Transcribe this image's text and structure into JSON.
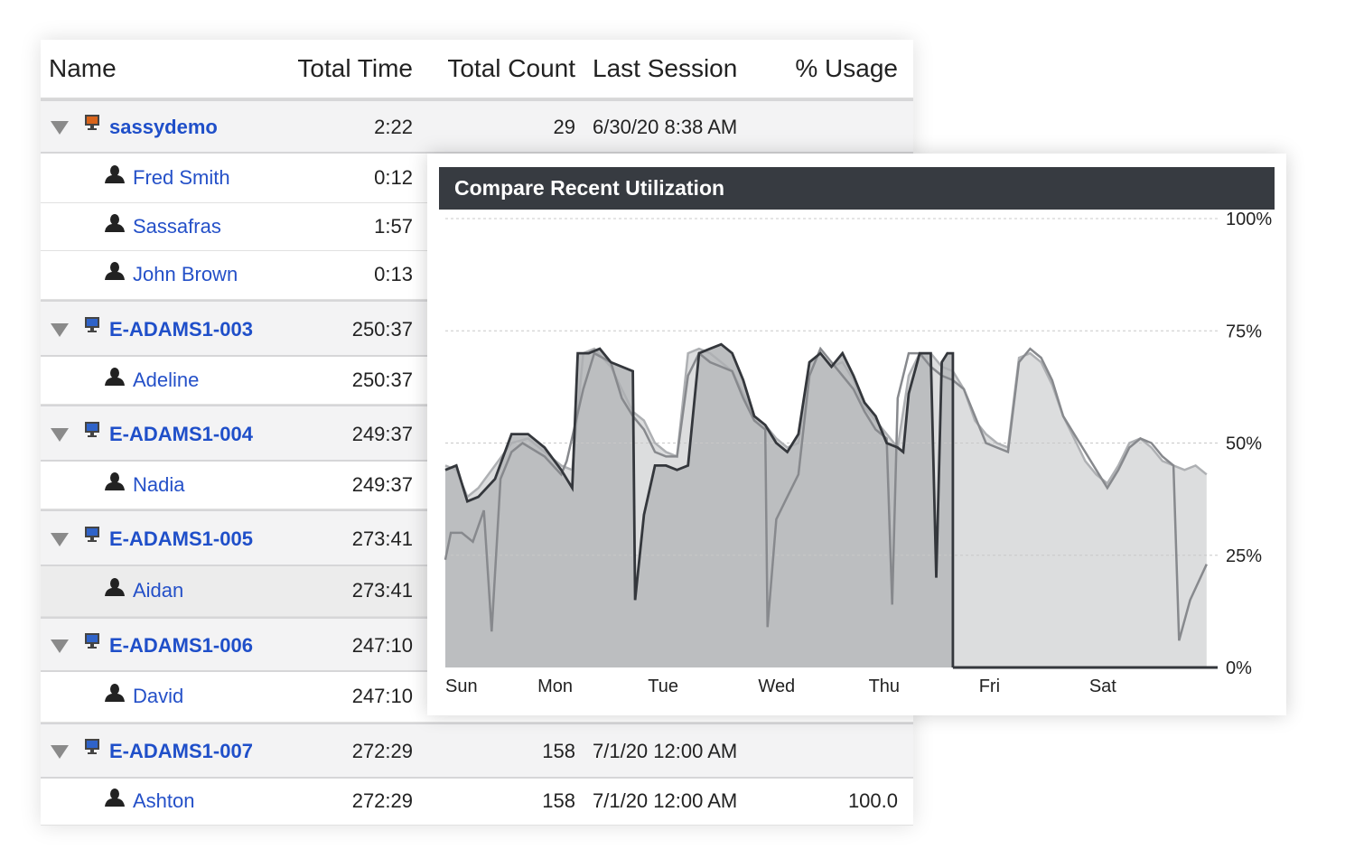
{
  "table": {
    "columns": {
      "name": "Name",
      "total_time": "Total Time",
      "total_count": "Total Count",
      "last_session": "Last Session",
      "usage": "% Usage"
    },
    "rows": [
      {
        "type": "computer",
        "icon": "computer-orange-icon",
        "name": "sassydemo",
        "total_time": "2:22",
        "total_count": "29",
        "last_session": "6/30/20 8:38 AM",
        "usage": ""
      },
      {
        "type": "user",
        "icon": "user-icon",
        "name": "Fred Smith",
        "total_time": "0:12",
        "total_count": "",
        "last_session": "",
        "usage": ""
      },
      {
        "type": "user",
        "icon": "user-icon",
        "name": "Sassafras",
        "total_time": "1:57",
        "total_count": "",
        "last_session": "",
        "usage": ""
      },
      {
        "type": "user",
        "icon": "user-icon",
        "name": "John Brown",
        "total_time": "0:13",
        "total_count": "",
        "last_session": "",
        "usage": ""
      },
      {
        "type": "computer",
        "icon": "computer-blue-icon",
        "name": "E-ADAMS1-003",
        "total_time": "250:37",
        "total_count": "",
        "last_session": "",
        "usage": ""
      },
      {
        "type": "user",
        "icon": "user-icon",
        "name": "Adeline",
        "total_time": "250:37",
        "total_count": "",
        "last_session": "",
        "usage": ""
      },
      {
        "type": "computer",
        "icon": "computer-blue-icon",
        "name": "E-ADAMS1-004",
        "total_time": "249:37",
        "total_count": "",
        "last_session": "",
        "usage": ""
      },
      {
        "type": "user",
        "icon": "user-icon",
        "name": "Nadia",
        "total_time": "249:37",
        "total_count": "",
        "last_session": "",
        "usage": ""
      },
      {
        "type": "computer",
        "icon": "computer-blue-icon",
        "name": "E-ADAMS1-005",
        "total_time": "273:41",
        "total_count": "",
        "last_session": "",
        "usage": ""
      },
      {
        "type": "user",
        "icon": "user-icon",
        "name": "Aidan",
        "total_time": "273:41",
        "total_count": "",
        "last_session": "",
        "usage": "",
        "selected": true
      },
      {
        "type": "computer",
        "icon": "computer-blue-icon",
        "name": "E-ADAMS1-006",
        "total_time": "247:10",
        "total_count": "",
        "last_session": "",
        "usage": ""
      },
      {
        "type": "user",
        "icon": "user-icon",
        "name": "David",
        "total_time": "247:10",
        "total_count": "",
        "last_session": "",
        "usage": ""
      },
      {
        "type": "computer",
        "icon": "computer-blue-icon",
        "name": "E-ADAMS1-007",
        "total_time": "272:29",
        "total_count": "158",
        "last_session": "7/1/20 12:00 AM",
        "usage": ""
      },
      {
        "type": "user",
        "icon": "user-icon",
        "name": "Ashton",
        "total_time": "272:29",
        "total_count": "158",
        "last_session": "7/1/20 12:00 AM",
        "usage": "100.0"
      }
    ]
  },
  "colors": {
    "link": "#1f4fc9",
    "header_bg": "#373b41",
    "current_fill": "#bcbec0",
    "previous_fill": "#dcddde"
  },
  "chart_data": {
    "type": "area",
    "title": "Compare Recent Utilization",
    "x_categories": [
      "Sun",
      "Mon",
      "Tue",
      "Wed",
      "Thu",
      "Fri",
      "Sat"
    ],
    "y_ticks": [
      "100%",
      "75%",
      "50%",
      "25%",
      "0%"
    ],
    "ylim": [
      0,
      100
    ],
    "xlim": [
      0,
      7
    ],
    "grid": true,
    "current_week_end": 4.6,
    "series": [
      {
        "role": "current-week",
        "color": "#34373c",
        "fill": "#bcbec0",
        "points": [
          [
            0,
            44
          ],
          [
            0.1,
            45
          ],
          [
            0.2,
            37
          ],
          [
            0.3,
            38
          ],
          [
            0.45,
            42
          ],
          [
            0.6,
            52
          ],
          [
            0.75,
            52
          ],
          [
            0.9,
            49
          ],
          [
            1.05,
            44
          ],
          [
            1.15,
            40
          ],
          [
            1.2,
            70
          ],
          [
            1.3,
            70
          ],
          [
            1.4,
            71
          ],
          [
            1.5,
            68
          ],
          [
            1.7,
            66
          ],
          [
            1.72,
            15
          ],
          [
            1.8,
            34
          ],
          [
            1.9,
            45
          ],
          [
            2.0,
            45
          ],
          [
            2.1,
            44
          ],
          [
            2.2,
            45
          ],
          [
            2.3,
            70
          ],
          [
            2.4,
            71
          ],
          [
            2.5,
            72
          ],
          [
            2.6,
            70
          ],
          [
            2.7,
            64
          ],
          [
            2.8,
            56
          ],
          [
            2.9,
            54
          ],
          [
            3.0,
            50
          ],
          [
            3.1,
            48
          ],
          [
            3.2,
            52
          ],
          [
            3.3,
            68
          ],
          [
            3.4,
            70
          ],
          [
            3.5,
            67
          ],
          [
            3.6,
            70
          ],
          [
            3.7,
            65
          ],
          [
            3.8,
            59
          ],
          [
            3.9,
            56
          ],
          [
            4.0,
            50
          ],
          [
            4.1,
            49
          ],
          [
            4.15,
            48
          ],
          [
            4.2,
            61
          ],
          [
            4.3,
            70
          ],
          [
            4.4,
            70
          ],
          [
            4.45,
            20
          ],
          [
            4.5,
            68
          ],
          [
            4.55,
            70
          ],
          [
            4.6,
            70
          ],
          [
            4.6,
            0
          ]
        ]
      },
      {
        "role": "previous-week-1",
        "color": "#87898d",
        "points": [
          [
            0,
            24
          ],
          [
            0.05,
            30
          ],
          [
            0.15,
            30
          ],
          [
            0.25,
            28
          ],
          [
            0.35,
            35
          ],
          [
            0.42,
            8
          ],
          [
            0.5,
            42
          ],
          [
            0.6,
            48
          ],
          [
            0.7,
            50
          ],
          [
            0.9,
            47
          ],
          [
            1.05,
            43
          ],
          [
            1.1,
            46
          ],
          [
            1.25,
            62
          ],
          [
            1.35,
            70
          ],
          [
            1.5,
            68
          ],
          [
            1.6,
            60
          ],
          [
            1.7,
            56
          ],
          [
            1.8,
            53
          ],
          [
            1.9,
            48
          ],
          [
            2.0,
            47
          ],
          [
            2.1,
            47
          ],
          [
            2.2,
            65
          ],
          [
            2.3,
            70
          ],
          [
            2.4,
            68
          ],
          [
            2.5,
            67
          ],
          [
            2.6,
            66
          ],
          [
            2.7,
            60
          ],
          [
            2.8,
            55
          ],
          [
            2.9,
            53
          ],
          [
            2.92,
            9
          ],
          [
            3.0,
            33
          ],
          [
            3.1,
            38
          ],
          [
            3.2,
            43
          ],
          [
            3.3,
            65
          ],
          [
            3.4,
            71
          ],
          [
            3.5,
            68
          ],
          [
            3.6,
            65
          ],
          [
            3.7,
            62
          ],
          [
            3.8,
            57
          ],
          [
            3.9,
            53
          ],
          [
            4.0,
            51
          ],
          [
            4.05,
            14
          ],
          [
            4.1,
            60
          ],
          [
            4.2,
            70
          ],
          [
            4.3,
            70
          ],
          [
            4.4,
            67
          ],
          [
            4.5,
            65
          ],
          [
            4.6,
            64
          ],
          [
            4.7,
            62
          ],
          [
            4.8,
            56
          ],
          [
            4.9,
            50
          ],
          [
            5.0,
            49
          ],
          [
            5.1,
            48
          ],
          [
            5.2,
            68
          ],
          [
            5.3,
            71
          ],
          [
            5.4,
            69
          ],
          [
            5.5,
            64
          ],
          [
            5.6,
            56
          ],
          [
            5.7,
            52
          ],
          [
            5.8,
            48
          ],
          [
            5.9,
            44
          ],
          [
            6.0,
            40
          ],
          [
            6.1,
            44
          ],
          [
            6.2,
            49
          ],
          [
            6.3,
            51
          ],
          [
            6.4,
            50
          ],
          [
            6.5,
            47
          ],
          [
            6.6,
            45
          ],
          [
            6.65,
            6
          ],
          [
            6.75,
            15
          ],
          [
            6.9,
            23
          ]
        ]
      },
      {
        "role": "previous-week-2",
        "color": "#aeb0b3",
        "fill": "#dcddde",
        "points": [
          [
            0,
            45
          ],
          [
            0.1,
            44
          ],
          [
            0.2,
            38
          ],
          [
            0.3,
            40
          ],
          [
            0.45,
            45
          ],
          [
            0.6,
            50
          ],
          [
            0.75,
            51
          ],
          [
            0.9,
            48
          ],
          [
            1.05,
            45
          ],
          [
            1.15,
            44
          ],
          [
            1.25,
            70
          ],
          [
            1.35,
            71
          ],
          [
            1.5,
            67
          ],
          [
            1.6,
            62
          ],
          [
            1.7,
            57
          ],
          [
            1.8,
            55
          ],
          [
            1.9,
            50
          ],
          [
            2.0,
            48
          ],
          [
            2.1,
            47
          ],
          [
            2.2,
            70
          ],
          [
            2.3,
            71
          ],
          [
            2.4,
            70
          ],
          [
            2.5,
            68
          ],
          [
            2.6,
            66
          ],
          [
            2.7,
            61
          ],
          [
            2.8,
            56
          ],
          [
            2.9,
            54
          ],
          [
            3.0,
            51
          ],
          [
            3.1,
            49
          ],
          [
            3.2,
            50
          ],
          [
            3.3,
            68
          ],
          [
            3.4,
            70
          ],
          [
            3.5,
            67
          ],
          [
            3.6,
            68
          ],
          [
            3.7,
            64
          ],
          [
            3.8,
            58
          ],
          [
            3.9,
            55
          ],
          [
            4.0,
            52
          ],
          [
            4.1,
            49
          ],
          [
            4.2,
            65
          ],
          [
            4.3,
            70
          ],
          [
            4.4,
            70
          ],
          [
            4.5,
            67
          ],
          [
            4.6,
            66
          ],
          [
            4.7,
            62
          ],
          [
            4.8,
            55
          ],
          [
            4.9,
            52
          ],
          [
            5.0,
            50
          ],
          [
            5.1,
            49
          ],
          [
            5.2,
            69
          ],
          [
            5.3,
            70
          ],
          [
            5.4,
            68
          ],
          [
            5.5,
            63
          ],
          [
            5.6,
            56
          ],
          [
            5.7,
            51
          ],
          [
            5.8,
            46
          ],
          [
            5.9,
            43
          ],
          [
            6.0,
            41
          ],
          [
            6.1,
            45
          ],
          [
            6.2,
            50
          ],
          [
            6.3,
            51
          ],
          [
            6.4,
            49
          ],
          [
            6.5,
            46
          ],
          [
            6.6,
            45
          ],
          [
            6.7,
            44
          ],
          [
            6.8,
            45
          ],
          [
            6.9,
            43
          ],
          [
            6.9,
            0
          ],
          [
            0,
            0
          ]
        ]
      }
    ]
  }
}
